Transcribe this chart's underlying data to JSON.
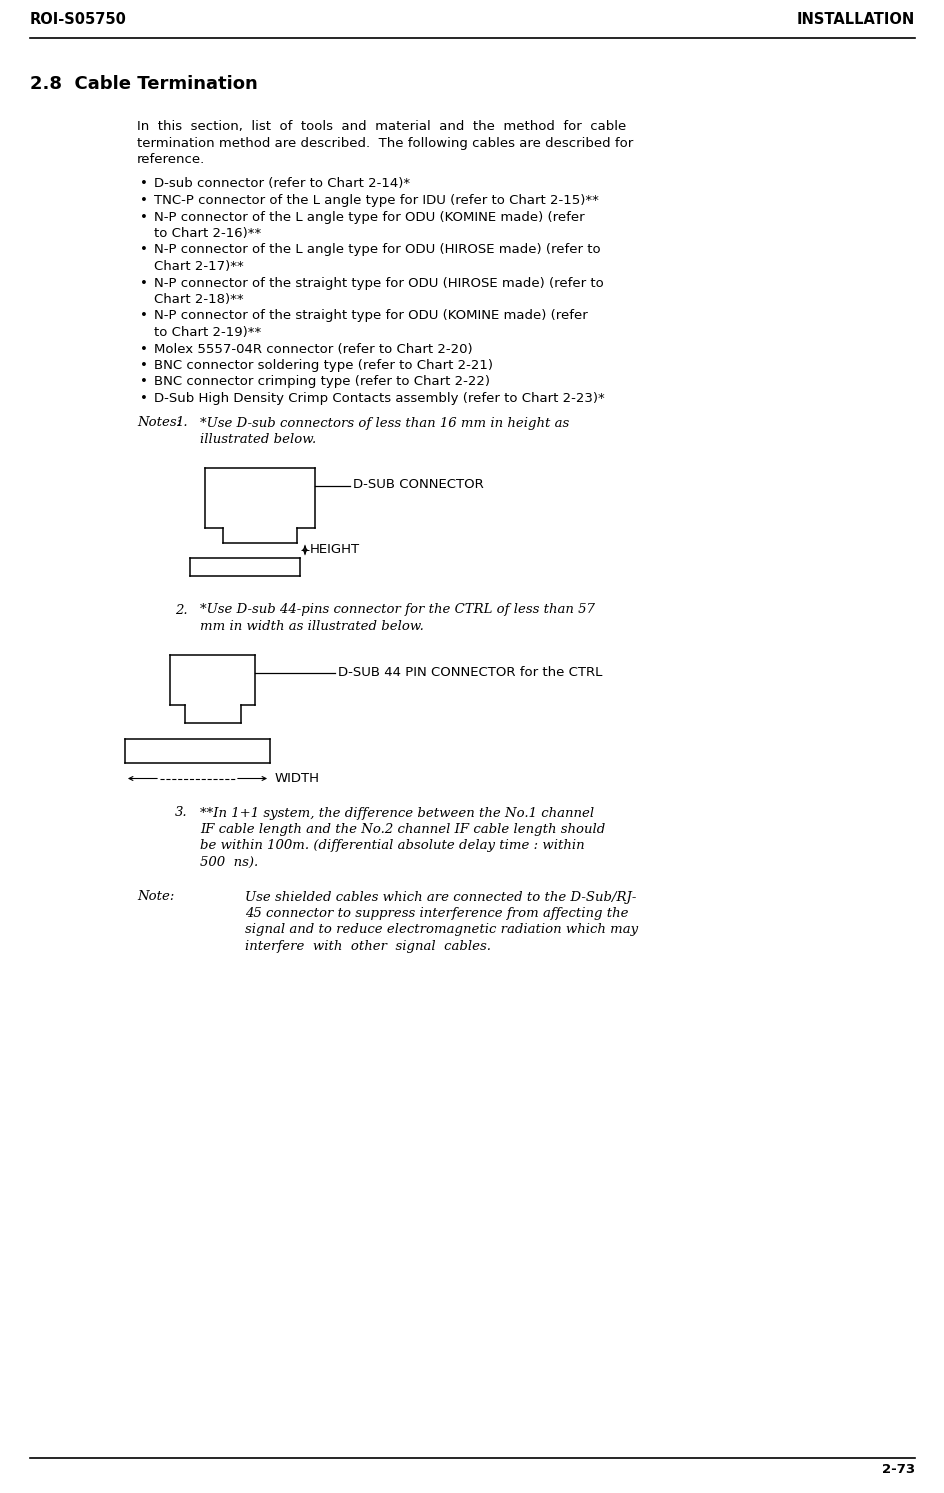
{
  "header_left": "ROI-S05750",
  "header_right": "INSTALLATION",
  "footer": "2-73",
  "section_title": "2.8  Cable Termination",
  "bg_color": "#ffffff",
  "text_color": "#000000"
}
